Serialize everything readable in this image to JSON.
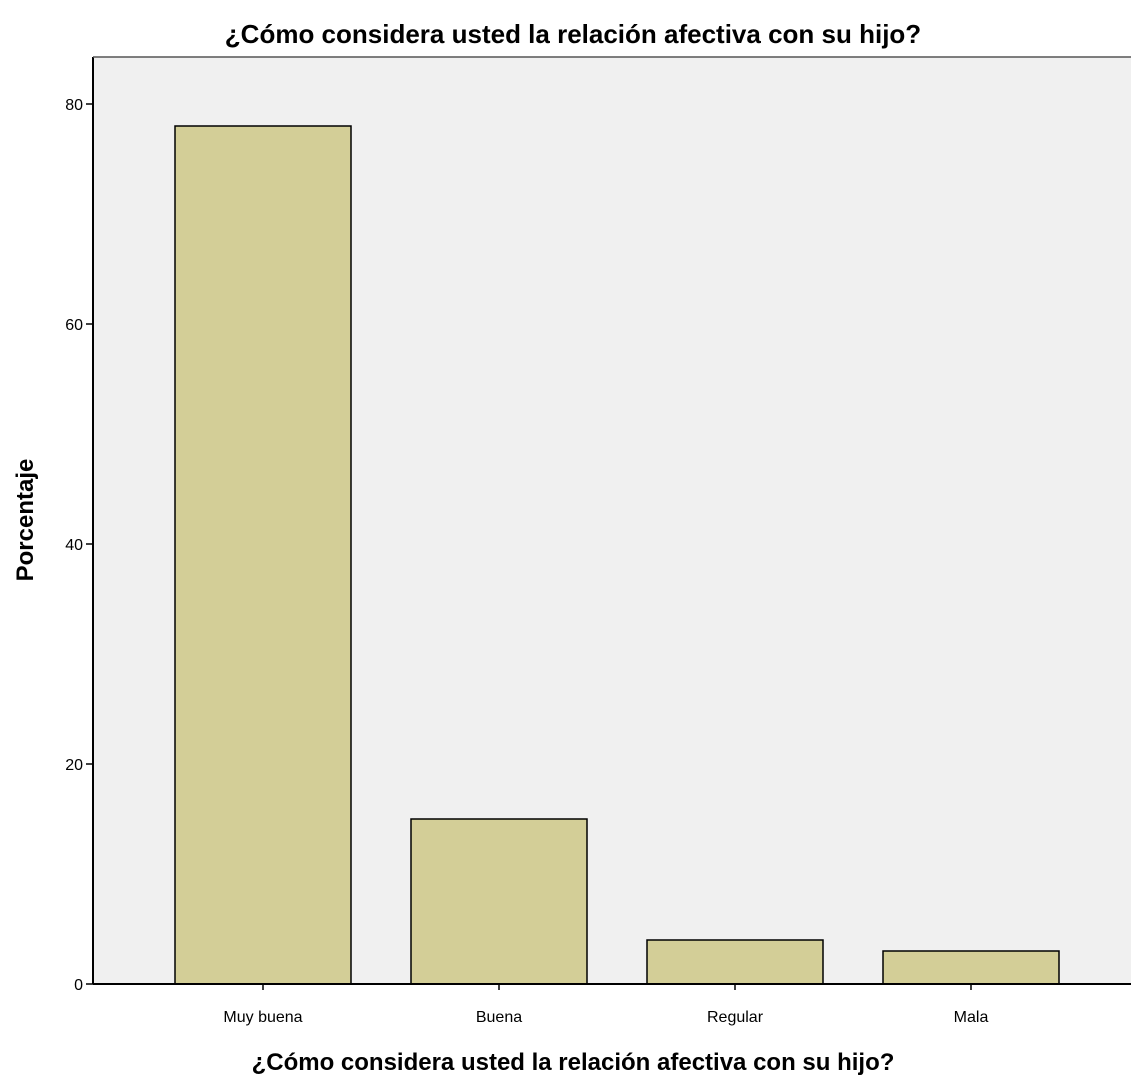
{
  "chart_data": {
    "type": "bar",
    "title": "¿Cómo considera usted la relación afectiva con su hijo?",
    "xlabel": "¿Cómo considera usted la relación afectiva con su hijo?",
    "ylabel": "Porcentaje",
    "categories": [
      "Muy buena",
      "Buena",
      "Regular",
      "Mala"
    ],
    "values": [
      78,
      15,
      4,
      3
    ],
    "ylim": [
      0,
      84
    ],
    "yticks": [
      0,
      20,
      40,
      60,
      80
    ],
    "ytick_labels": [
      "0",
      "20",
      "40",
      "60",
      "80"
    ],
    "grid": false,
    "legend": "none",
    "colors": {
      "plot_background": "#f0f0f0",
      "bar_fill": "#d3ce97",
      "bar_stroke": "#000000",
      "axis": "#000000"
    }
  }
}
